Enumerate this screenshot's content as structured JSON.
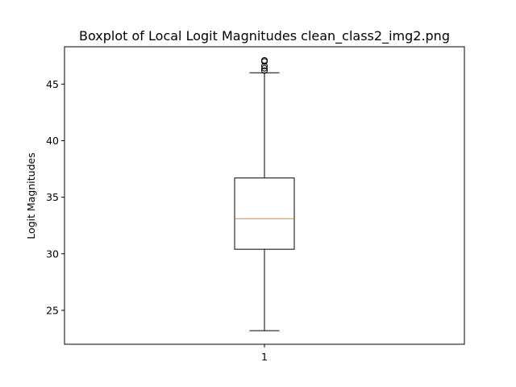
{
  "chart_data": {
    "type": "boxplot",
    "title": "Boxplot of Local Logit Magnitudes clean_class2_img2.png",
    "xlabel": "",
    "ylabel": "Logit Magnitudes",
    "x_tick_labels": [
      "1"
    ],
    "y_ticks": [
      25,
      30,
      35,
      40,
      45
    ],
    "ylim": [
      22.0,
      48.3
    ],
    "grid": false,
    "boxes": [
      {
        "label": "1",
        "whisker_low": 23.2,
        "q1": 30.4,
        "median": 33.1,
        "q3": 36.7,
        "whisker_high": 46.0,
        "fliers": [
          46.2,
          46.4,
          46.6,
          47.0,
          47.1
        ]
      }
    ],
    "colors": {
      "box": "#000000",
      "median": "#ff7f0e",
      "flier": "#000000"
    }
  }
}
